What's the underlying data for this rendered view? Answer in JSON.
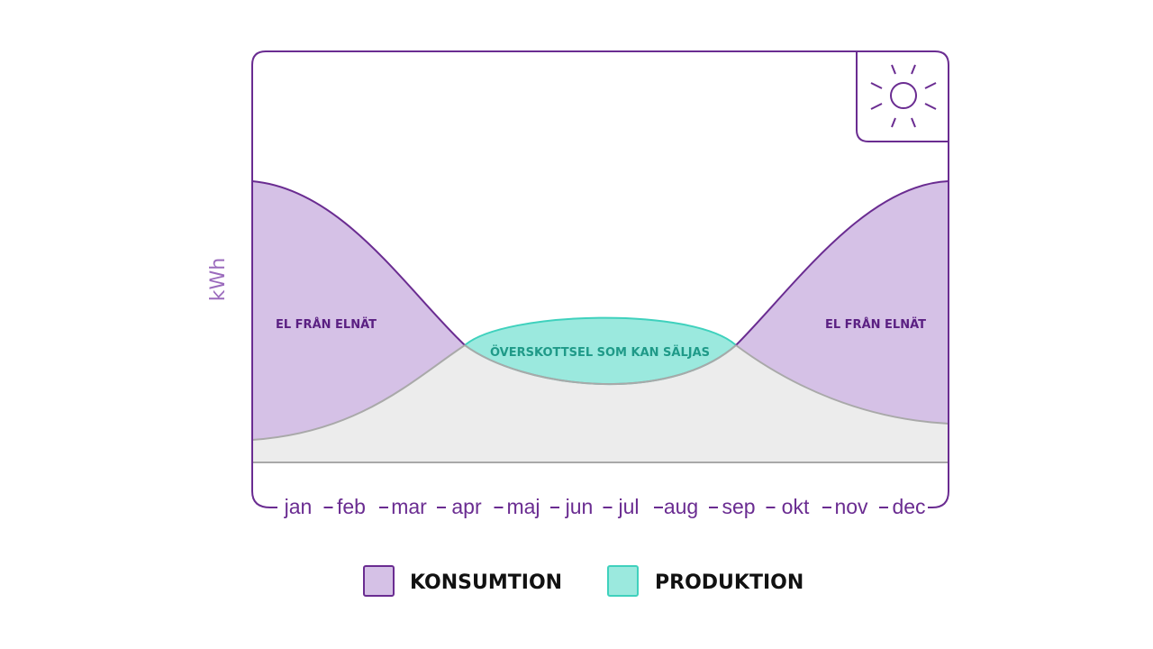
{
  "diagram": {
    "y_axis_label": "kWh",
    "months": [
      "jan",
      "feb",
      "mar",
      "apr",
      "maj",
      "jun",
      "jul",
      "aug",
      "sep",
      "okt",
      "nov",
      "dec"
    ],
    "area_labels": {
      "grid_left": "EL FRÅN ELNÄT",
      "surplus": "ÖVERSKOTTSEL SOM KAN SÄLJAS",
      "grid_right": "EL FRÅN ELNÄT"
    },
    "legend": [
      {
        "name": "KONSUMTION",
        "color": "#d5c1e6"
      },
      {
        "name": "PRODUKTION",
        "color": "#9be9de"
      }
    ]
  }
}
